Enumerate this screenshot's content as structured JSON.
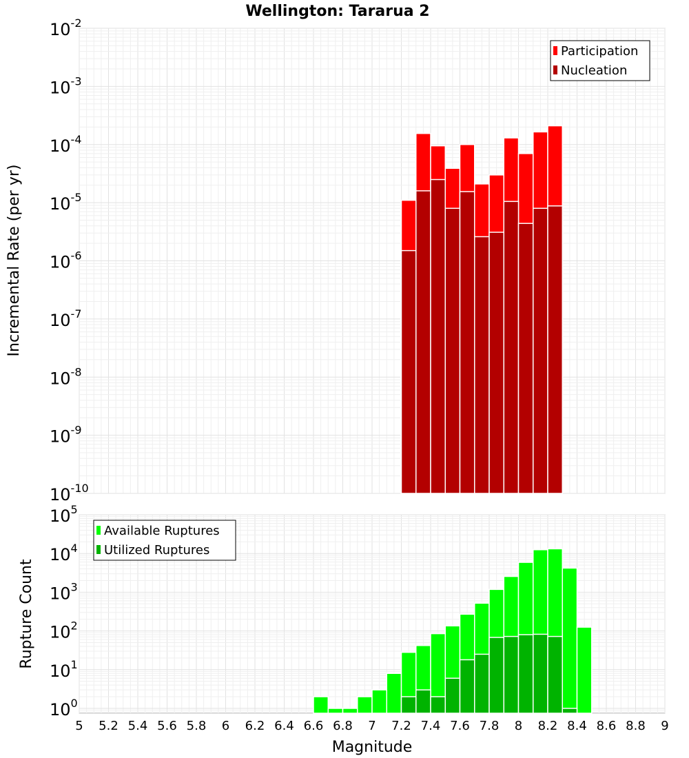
{
  "title": "Wellington: Tararua 2",
  "xlabel": "Magnitude",
  "chart_data": [
    {
      "type": "bar",
      "name": "rates",
      "ylabel": "Incremental Rate (per yr)",
      "yscale": "log",
      "ylim": [
        1e-10,
        0.01
      ],
      "xlim": [
        5,
        9
      ],
      "bin_width": 0.1,
      "legend_position": "top-right",
      "series": [
        {
          "name": "Participation",
          "color": "#ff0000",
          "x": [
            7.25,
            7.35,
            7.45,
            7.55,
            7.65,
            7.75,
            7.85,
            7.95,
            8.05,
            8.15,
            8.25
          ],
          "values": [
            1.1e-05,
            0.000155,
            9.5e-05,
            3.9e-05,
            0.0001,
            2.1e-05,
            3e-05,
            0.00013,
            7e-05,
            0.000165,
            0.00021
          ]
        },
        {
          "name": "Nucleation",
          "color": "#b30000",
          "x": [
            7.25,
            7.35,
            7.45,
            7.55,
            7.65,
            7.75,
            7.85,
            7.95,
            8.05,
            8.15,
            8.25
          ],
          "values": [
            1.5e-06,
            1.6e-05,
            2.5e-05,
            8e-06,
            1.55e-05,
            2.6e-06,
            3.1e-06,
            1.05e-05,
            4.4e-06,
            8e-06,
            8.8e-06
          ]
        }
      ]
    },
    {
      "type": "bar",
      "name": "counts",
      "ylabel": "Rupture Count",
      "yscale": "log",
      "ylim": [
        0.75,
        100000.0
      ],
      "xlim": [
        5,
        9
      ],
      "bin_width": 0.1,
      "legend_position": "top-left",
      "series": [
        {
          "name": "Available Ruptures",
          "color": "#00ff00",
          "x": [
            6.65,
            6.75,
            6.85,
            6.95,
            7.05,
            7.15,
            7.25,
            7.35,
            7.45,
            7.55,
            7.65,
            7.75,
            7.85,
            7.95,
            8.05,
            8.15,
            8.25,
            8.35,
            8.45
          ],
          "values": [
            2,
            1,
            1,
            2,
            3,
            8,
            28,
            42,
            85,
            135,
            270,
            520,
            1180,
            2550,
            5900,
            12500,
            13200,
            4200,
            125
          ]
        },
        {
          "name": "Utilized Ruptures",
          "color": "#00b300",
          "x": [
            7.25,
            7.35,
            7.45,
            7.55,
            7.65,
            7.75,
            7.85,
            7.95,
            8.05,
            8.15,
            8.25,
            8.35
          ],
          "values": [
            2,
            3,
            2,
            6,
            18,
            25,
            68,
            72,
            80,
            82,
            72,
            1
          ]
        }
      ]
    }
  ],
  "x_ticks": [
    "5",
    "5.2",
    "5.4",
    "5.6",
    "5.8",
    "6",
    "6.2",
    "6.4",
    "6.6",
    "6.8",
    "7",
    "7.2",
    "7.4",
    "7.6",
    "7.8",
    "8",
    "8.2",
    "8.4",
    "8.6",
    "8.8",
    "9"
  ],
  "top_y_ticks": [
    {
      "base": "10",
      "exp": "-10"
    },
    {
      "base": "10",
      "exp": "-9"
    },
    {
      "base": "10",
      "exp": "-8"
    },
    {
      "base": "10",
      "exp": "-7"
    },
    {
      "base": "10",
      "exp": "-6"
    },
    {
      "base": "10",
      "exp": "-5"
    },
    {
      "base": "10",
      "exp": "-4"
    },
    {
      "base": "10",
      "exp": "-3"
    },
    {
      "base": "10",
      "exp": "-2"
    }
  ],
  "bottom_y_ticks": [
    {
      "base": "10",
      "exp": "0"
    },
    {
      "base": "10",
      "exp": "1"
    },
    {
      "base": "10",
      "exp": "2"
    },
    {
      "base": "10",
      "exp": "3"
    },
    {
      "base": "10",
      "exp": "4"
    },
    {
      "base": "10",
      "exp": "5"
    }
  ]
}
